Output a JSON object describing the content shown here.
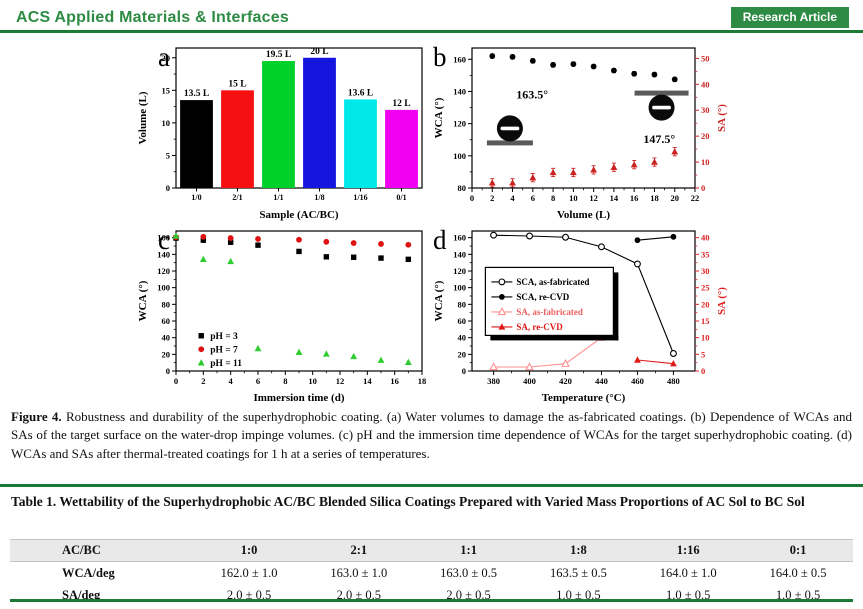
{
  "header": {
    "journal": "ACS Applied Materials & Interfaces",
    "badge": "Research Article",
    "accent_green": "#2e8b44",
    "rule_green": "#1d7a35"
  },
  "figure": {
    "caption_lead": "Figure 4.",
    "caption_body": " Robustness and durability of the superhydrophobic coating. (a) Water volumes to damage the as-fabricated coatings. (b) Dependence of WCAs and SAs of the target surface on the water-drop impinge volumes. (c) pH and the immersion time dependence of WCAs for the target superhydrophobic coating. (d) WCAs and SAs after thermal-treated coatings for 1 h at a series of temperatures."
  },
  "chart_data": [
    {
      "panel_label": "a",
      "type": "bar",
      "categories": [
        "1/0",
        "2/1",
        "1/1",
        "1/8",
        "1/16",
        "0/1"
      ],
      "values": [
        13.5,
        15,
        19.5,
        20,
        13.6,
        12
      ],
      "bar_labels": [
        "13.5 L",
        "15 L",
        "19.5 L",
        "20 L",
        "13.6 L",
        "12 L"
      ],
      "bar_colors": [
        "#000000",
        "#f51111",
        "#00d02a",
        "#1515e0",
        "#00e8e8",
        "#f000f0"
      ],
      "xlabel": "Sample (AC/BC)",
      "ylabel": "Volume (L)",
      "ylim": [
        0,
        21.5
      ],
      "yticks": [
        0,
        5,
        10,
        15,
        20
      ],
      "plx": 22
    },
    {
      "panel_label": "b",
      "type": "scatter",
      "xlabel": "Volume (L)",
      "ylabel": "WCA (°)",
      "y2label": "SA (°)",
      "xlim": [
        0,
        22
      ],
      "xticks": [
        0,
        2,
        4,
        6,
        8,
        10,
        12,
        14,
        16,
        18,
        20,
        22
      ],
      "ylim": [
        80,
        167
      ],
      "yticks": [
        80,
        100,
        120,
        140,
        160
      ],
      "y2lim": [
        0,
        54
      ],
      "y2ticks": [
        0,
        10,
        20,
        30,
        40,
        50
      ],
      "y2color": "#cc2222",
      "series": [
        {
          "name": "WCA",
          "axis": "left",
          "marker": "circle",
          "fill": "solid",
          "color": "#000000",
          "err": 1.3,
          "x": [
            2,
            4,
            6,
            8,
            10,
            12,
            14,
            16,
            18,
            20
          ],
          "y": [
            162,
            161.5,
            159,
            156.5,
            157,
            155.5,
            153,
            151,
            150.5,
            147.5
          ]
        },
        {
          "name": "SA",
          "axis": "right",
          "marker": "triangle",
          "fill": "solid",
          "color": "#cc2222",
          "err": 1.6,
          "x": [
            2,
            4,
            6,
            8,
            10,
            12,
            14,
            16,
            18,
            20
          ],
          "y": [
            2,
            2,
            4,
            6,
            6,
            7,
            8,
            9,
            10,
            14
          ]
        }
      ],
      "insets": [
        {
          "kind": "sessile",
          "label": "163.5°",
          "fx": 0.17,
          "fbar": 0.66,
          "bw": 46,
          "r": 13,
          "lfx": 0.27,
          "lfy": 0.36
        },
        {
          "kind": "pendant",
          "label": "147.5°",
          "fx": 0.85,
          "fbar": 0.34,
          "bw": 54,
          "r": 13,
          "lfx": 0.84,
          "lfy": 0.68
        }
      ],
      "plx": 1
    },
    {
      "panel_label": "c",
      "type": "scatter",
      "xlabel": "Immersion time (d)",
      "ylabel": "WCA (°)",
      "xlim": [
        0,
        18
      ],
      "xticks": [
        0,
        2,
        4,
        6,
        8,
        10,
        12,
        14,
        16,
        18
      ],
      "ylim": [
        0,
        168
      ],
      "yticks": [
        0,
        20,
        40,
        60,
        80,
        100,
        120,
        140,
        160
      ],
      "series": [
        {
          "name": "pH = 3",
          "axis": "left",
          "marker": "square",
          "fill": "solid",
          "color": "#000000",
          "legendColor": "#000000",
          "x": [
            0,
            2,
            4,
            6,
            9,
            11,
            13,
            15,
            17
          ],
          "y": [
            159.5,
            157,
            154.5,
            151,
            143.5,
            137,
            136.5,
            135.5,
            134
          ]
        },
        {
          "name": "pH = 7",
          "axis": "left",
          "marker": "circle",
          "fill": "solid",
          "color": "#dd1111",
          "legendColor": "#000000",
          "x": [
            0,
            2,
            4,
            6,
            9,
            11,
            13,
            15,
            17
          ],
          "y": [
            160.5,
            161,
            159.5,
            158.5,
            157.5,
            155,
            153.5,
            152.5,
            151.5
          ]
        },
        {
          "name": "pH = 11",
          "axis": "left",
          "marker": "triangle",
          "fill": "solid",
          "color": "#2ecc2e",
          "legendColor": "#000000",
          "x": [
            0,
            2,
            4,
            6,
            9,
            11,
            13,
            15,
            17
          ],
          "y": [
            162,
            134,
            131.5,
            27,
            22.5,
            20.5,
            17.5,
            13,
            10.5
          ]
        }
      ],
      "legend": {
        "fx": 0.07,
        "fy": 0.7,
        "rh": 13.5
      },
      "plx": 22
    },
    {
      "panel_label": "d",
      "type": "scatter",
      "xlabel": "Temperature (°C)",
      "ylabel": "WCA (°)",
      "y2label": "SA (°)",
      "xlim": [
        368,
        492
      ],
      "xticks": [
        380,
        400,
        420,
        440,
        460,
        480
      ],
      "ylim": [
        0,
        168
      ],
      "yticks": [
        0,
        20,
        40,
        60,
        80,
        100,
        120,
        140,
        160
      ],
      "y2lim": [
        0,
        42
      ],
      "y2ticks": [
        0,
        5,
        10,
        15,
        20,
        25,
        30,
        35,
        40
      ],
      "y2color": "#e02020",
      "series": [
        {
          "name": "SCA, as-fabricated",
          "axis": "left",
          "marker": "circle",
          "fill": "open",
          "color": "#000000",
          "line": true,
          "err": 2.5,
          "legendColor": "#000000",
          "x": [
            380,
            400,
            420,
            440,
            460,
            480
          ],
          "y": [
            163,
            162,
            160.5,
            149,
            128.5,
            21
          ]
        },
        {
          "name": "SCA, re-CVD",
          "axis": "left",
          "marker": "circle",
          "fill": "solid",
          "color": "#000000",
          "line": true,
          "legendColor": "#000000",
          "x": [
            460,
            480
          ],
          "y": [
            157,
            161
          ]
        },
        {
          "name": "SA, as-fabricated",
          "axis": "right",
          "marker": "triangle",
          "fill": "open",
          "color": "#ff9090",
          "line": true,
          "legendColor": "#f06060",
          "x": [
            380,
            400,
            420,
            440
          ],
          "y": [
            1.2,
            1.2,
            2.2,
            10
          ]
        },
        {
          "name": "SA, re-CVD",
          "axis": "right",
          "marker": "triangle",
          "fill": "solid",
          "color": "#e01818",
          "line": true,
          "legendColor": "#e01818",
          "x": [
            460,
            480
          ],
          "y": [
            3.3,
            2.2
          ]
        }
      ],
      "legend": {
        "fx": 0.06,
        "fy": 0.26,
        "rh": 15,
        "box": true,
        "shadow": true,
        "w": 128
      },
      "plx": 1
    }
  ],
  "table": {
    "title": "Table 1. Wettability of the Superhydrophobic AC/BC Blended Silica Coatings Prepared with Varied Mass Proportions of AC Sol to BC Sol",
    "headers": [
      "AC/BC",
      "1:0",
      "2:1",
      "1:1",
      "1:8",
      "1:16",
      "0:1"
    ],
    "rows": [
      [
        "WCA/deg",
        "162.0 ± 1.0",
        "163.0 ± 1.0",
        "163.0 ± 0.5",
        "163.5 ± 0.5",
        "164.0 ± 1.0",
        "164.0 ± 0.5"
      ],
      [
        "SA/deg",
        "2.0 ± 0.5",
        "2.0 ± 0.5",
        "2.0 ± 0.5",
        "1.0 ± 0.5",
        "1.0 ± 0.5",
        "1.0 ± 0.5"
      ]
    ]
  }
}
